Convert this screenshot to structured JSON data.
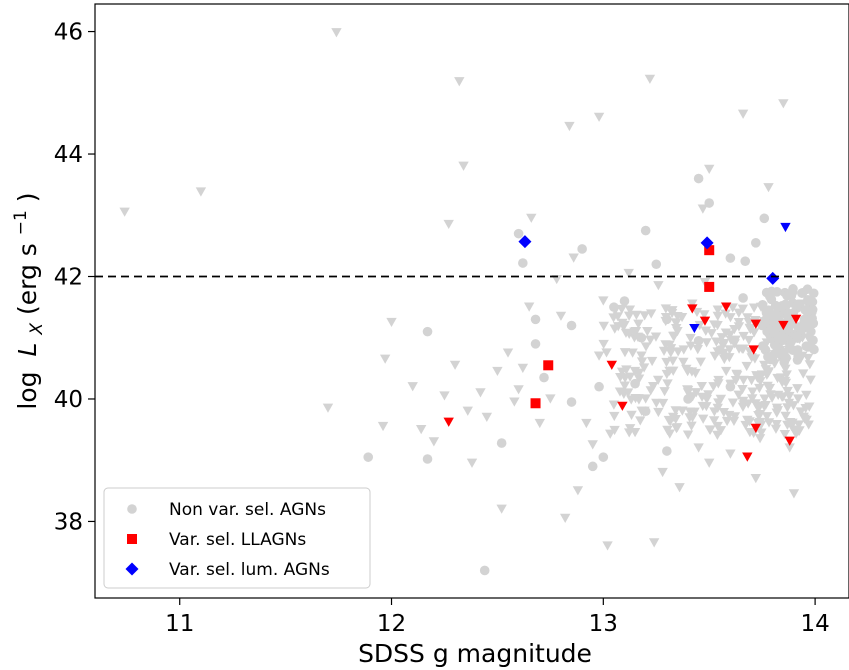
{
  "chart_data": {
    "type": "scatter",
    "xlabel": "SDSS g magnitude",
    "ylabel_parts": {
      "log": "log",
      "L": "L",
      "sub": "X",
      "unit_open": " (erg s",
      "sup": "−1",
      "unit_close": ")"
    },
    "xlim": [
      10.6,
      14.16
    ],
    "ylim": [
      36.75,
      46.45
    ],
    "x_ticks": [
      11,
      12,
      13,
      14
    ],
    "y_ticks": [
      38,
      40,
      42,
      44,
      46
    ],
    "x_tick_labels": [
      "11",
      "12",
      "13",
      "14"
    ],
    "y_tick_labels": [
      "38",
      "40",
      "42",
      "44",
      "46"
    ],
    "grid": false,
    "legend_position": "lower-left",
    "threshold_line": {
      "y": 42,
      "style": "dashed",
      "color": "#000000"
    },
    "series": [
      {
        "name": "Non var. sel. AGNs",
        "marker": "circle",
        "color": "#d3d3d3",
        "points": [
          [
            12.62,
            42.22
          ],
          [
            12.6,
            42.7
          ],
          [
            12.17,
            41.1
          ],
          [
            11.89,
            39.05
          ],
          [
            12.17,
            39.02
          ],
          [
            12.52,
            39.28
          ],
          [
            12.44,
            37.2
          ],
          [
            12.68,
            40.9
          ],
          [
            12.68,
            41.3
          ],
          [
            12.85,
            41.2
          ],
          [
            12.9,
            42.45
          ],
          [
            12.72,
            40.35
          ],
          [
            13.2,
            42.75
          ],
          [
            13.25,
            42.2
          ],
          [
            13.45,
            43.6
          ],
          [
            13.5,
            43.2
          ],
          [
            13.72,
            42.55
          ],
          [
            13.67,
            42.25
          ],
          [
            13.76,
            42.95
          ],
          [
            13.6,
            42.3
          ],
          [
            13.1,
            41.6
          ],
          [
            13.18,
            41.0
          ],
          [
            13.3,
            41.3
          ],
          [
            13.45,
            40.95
          ],
          [
            13.55,
            40.8
          ],
          [
            13.66,
            41.65
          ],
          [
            13.78,
            41.45
          ],
          [
            13.85,
            41.0
          ],
          [
            13.92,
            40.7
          ],
          [
            13.95,
            41.3
          ],
          [
            13.98,
            41.1
          ],
          [
            13.88,
            40.85
          ],
          [
            13.82,
            41.75
          ],
          [
            13.75,
            41.2
          ],
          [
            13.6,
            40.2
          ],
          [
            13.4,
            40.0
          ],
          [
            13.2,
            39.8
          ],
          [
            13.15,
            40.25
          ],
          [
            13.05,
            41.5
          ],
          [
            12.98,
            40.2
          ],
          [
            12.85,
            39.95
          ],
          [
            12.95,
            38.9
          ],
          [
            13.0,
            39.05
          ],
          [
            13.3,
            39.15
          ]
        ]
      },
      {
        "name": "",
        "marker": "triangle-down",
        "color": "#d3d3d3",
        "points": [
          [
            10.74,
            43.05
          ],
          [
            11.1,
            43.38
          ],
          [
            11.74,
            45.98
          ],
          [
            11.7,
            39.85
          ],
          [
            11.97,
            40.65
          ],
          [
            12.0,
            41.25
          ],
          [
            11.96,
            39.55
          ],
          [
            12.1,
            40.2
          ],
          [
            12.14,
            39.5
          ],
          [
            12.2,
            39.3
          ],
          [
            12.25,
            40.05
          ],
          [
            12.27,
            42.85
          ],
          [
            12.32,
            45.18
          ],
          [
            12.34,
            43.8
          ],
          [
            12.3,
            40.55
          ],
          [
            12.36,
            39.8
          ],
          [
            12.38,
            38.95
          ],
          [
            12.42,
            40.1
          ],
          [
            12.45,
            39.7
          ],
          [
            12.5,
            40.45
          ],
          [
            12.52,
            38.2
          ],
          [
            12.55,
            40.75
          ],
          [
            12.58,
            39.95
          ],
          [
            12.6,
            40.15
          ],
          [
            12.62,
            40.5
          ],
          [
            12.65,
            41.5
          ],
          [
            12.66,
            42.95
          ],
          [
            12.7,
            39.6
          ],
          [
            12.75,
            40.0
          ],
          [
            12.78,
            41.95
          ],
          [
            12.8,
            41.35
          ],
          [
            12.82,
            38.05
          ],
          [
            12.86,
            42.3
          ],
          [
            12.88,
            38.5
          ],
          [
            12.92,
            39.6
          ],
          [
            12.95,
            39.25
          ],
          [
            12.98,
            40.7
          ],
          [
            13.0,
            41.6
          ],
          [
            13.02,
            37.6
          ],
          [
            13.05,
            39.9
          ],
          [
            13.08,
            40.35
          ],
          [
            13.1,
            41.2
          ],
          [
            13.12,
            42.05
          ],
          [
            13.15,
            39.45
          ],
          [
            13.18,
            40.7
          ],
          [
            13.2,
            40.0
          ],
          [
            13.22,
            45.22
          ],
          [
            13.24,
            37.65
          ],
          [
            13.26,
            41.85
          ],
          [
            13.28,
            38.8
          ],
          [
            13.3,
            40.4
          ],
          [
            13.33,
            39.7
          ],
          [
            13.35,
            41.1
          ],
          [
            13.36,
            38.55
          ],
          [
            13.38,
            40.8
          ],
          [
            13.4,
            40.1
          ],
          [
            13.42,
            41.55
          ],
          [
            13.45,
            39.2
          ],
          [
            13.46,
            40.6
          ],
          [
            13.48,
            41.9
          ],
          [
            13.5,
            38.95
          ],
          [
            13.52,
            40.2
          ],
          [
            13.54,
            39.55
          ],
          [
            13.56,
            41.0
          ],
          [
            13.58,
            40.45
          ],
          [
            13.6,
            39.1
          ],
          [
            13.62,
            40.9
          ],
          [
            13.64,
            41.4
          ],
          [
            13.66,
            44.65
          ],
          [
            13.68,
            39.65
          ],
          [
            13.7,
            40.3
          ],
          [
            13.72,
            38.7
          ],
          [
            13.74,
            39.35
          ],
          [
            13.76,
            40.55
          ],
          [
            13.78,
            43.45
          ],
          [
            13.8,
            41.05
          ],
          [
            13.82,
            39.85
          ],
          [
            13.85,
            44.82
          ],
          [
            13.86,
            40.6
          ],
          [
            13.88,
            39.2
          ],
          [
            13.9,
            38.45
          ],
          [
            13.92,
            40.0
          ],
          [
            13.94,
            41.55
          ],
          [
            13.96,
            39.65
          ],
          [
            13.98,
            40.95
          ],
          [
            12.84,
            44.45
          ],
          [
            12.98,
            44.6
          ],
          [
            13.5,
            43.75
          ],
          [
            13.47,
            43.1
          ]
        ]
      },
      {
        "name": "Var. sel. LLAGNs",
        "marker": "square",
        "color": "#ff0000",
        "points": [
          [
            12.68,
            39.93
          ],
          [
            12.74,
            40.55
          ],
          [
            13.5,
            41.83
          ],
          [
            13.5,
            42.43
          ]
        ]
      },
      {
        "name": "",
        "marker": "triangle-down",
        "color": "#ff0000",
        "points": [
          [
            12.27,
            39.62
          ],
          [
            13.04,
            40.55
          ],
          [
            13.09,
            39.88
          ],
          [
            13.42,
            41.47
          ],
          [
            13.48,
            41.27
          ],
          [
            13.58,
            41.5
          ],
          [
            13.68,
            39.05
          ],
          [
            13.71,
            40.8
          ],
          [
            13.72,
            41.22
          ],
          [
            13.72,
            39.52
          ],
          [
            13.85,
            41.2
          ],
          [
            13.88,
            39.31
          ],
          [
            13.91,
            41.3
          ]
        ]
      },
      {
        "name": "Var. sel. lum. AGNs",
        "marker": "diamond",
        "color": "#0000ff",
        "points": [
          [
            12.63,
            42.57
          ],
          [
            13.49,
            42.55
          ],
          [
            13.8,
            41.97
          ]
        ]
      },
      {
        "name": "",
        "marker": "triangle-down",
        "color": "#0000ff",
        "points": [
          [
            13.43,
            41.15
          ],
          [
            13.86,
            42.8
          ]
        ]
      }
    ],
    "legend": [
      {
        "label": "Non var. sel. AGNs",
        "marker": "circle",
        "color": "#d3d3d3"
      },
      {
        "label": "Var. sel. LLAGNs",
        "marker": "square",
        "color": "#ff0000"
      },
      {
        "label": "Var. sel. lum. AGNs",
        "marker": "diamond",
        "color": "#0000ff"
      }
    ]
  }
}
